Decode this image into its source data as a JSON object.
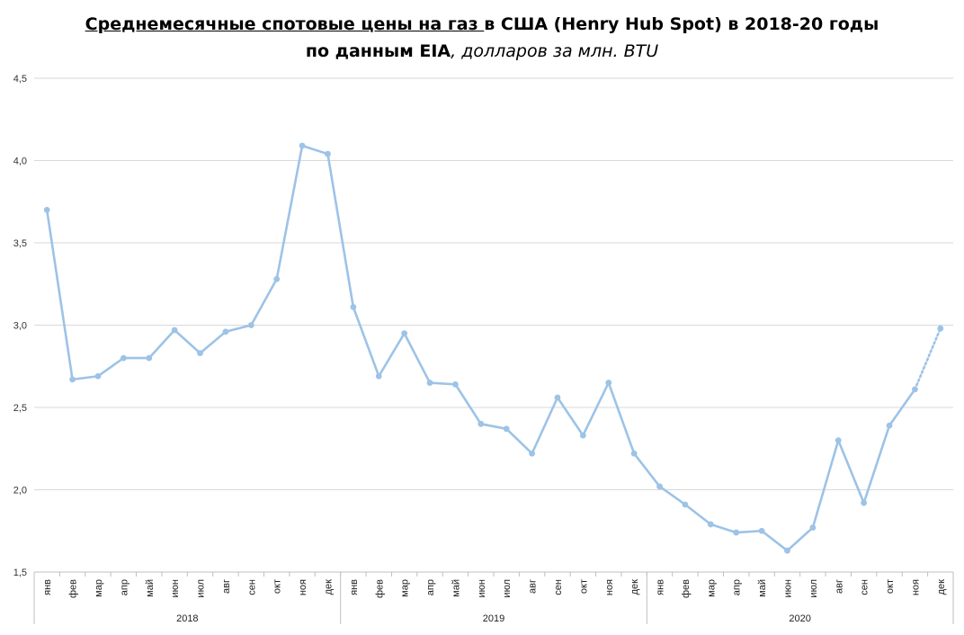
{
  "chart_data": {
    "type": "line",
    "title": {
      "line1_underlined": "Среднемесячные спотовые цены на газ ",
      "line1_rest": "в США (Henry Hub Spot) в 2018-20 годы",
      "line2_bold": "по данным EIA",
      "line2_italic": ", долларов за млн. BTU"
    },
    "ylim": [
      1.5,
      4.5
    ],
    "yticks": [
      "1,5",
      "2,0",
      "2,5",
      "3,0",
      "3,5",
      "4,0",
      "4,5"
    ],
    "ytick_values": [
      1.5,
      2.0,
      2.5,
      3.0,
      3.5,
      4.0,
      4.5
    ],
    "grid": true,
    "months": [
      "янв",
      "фев",
      "мар",
      "апр",
      "май",
      "июн",
      "июл",
      "авг",
      "сен",
      "окт",
      "ноя",
      "дек"
    ],
    "years": [
      "2018",
      "2019",
      "2020"
    ],
    "series": [
      {
        "color": "#9dc3e6",
        "values": [
          3.7,
          2.67,
          2.69,
          2.8,
          2.8,
          2.97,
          2.83,
          2.96,
          3.0,
          3.28,
          4.09,
          4.04,
          3.11,
          2.69,
          2.95,
          2.65,
          2.64,
          2.4,
          2.37,
          2.22,
          2.56,
          2.33,
          2.65,
          2.22,
          2.02,
          1.91,
          1.79,
          1.74,
          1.75,
          1.63,
          1.77,
          2.3,
          1.92,
          2.39,
          2.61,
          2.98
        ],
        "projected_from_index": 34
      }
    ]
  }
}
